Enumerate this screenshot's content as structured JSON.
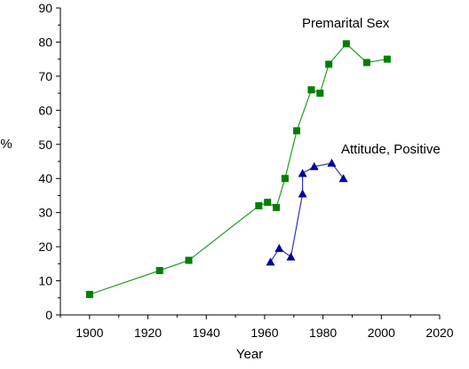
{
  "chart_data": {
    "type": "line",
    "title": "",
    "xlabel": "Year",
    "ylabel": "%",
    "xlim": [
      1890,
      2020
    ],
    "ylim": [
      0,
      90
    ],
    "xticks": [
      1900,
      1920,
      1940,
      1960,
      1980,
      2000,
      2020
    ],
    "yticks": [
      0,
      10,
      20,
      30,
      40,
      50,
      60,
      70,
      80,
      90
    ],
    "grid": false,
    "legend": "none",
    "series": [
      {
        "name": "Premarital Sex",
        "color": "#008000",
        "line_color": "#22a022",
        "marker": "square",
        "points": [
          {
            "x": 1900,
            "y": 6
          },
          {
            "x": 1924,
            "y": 13
          },
          {
            "x": 1934,
            "y": 16
          },
          {
            "x": 1958,
            "y": 32
          },
          {
            "x": 1961,
            "y": 33
          },
          {
            "x": 1964,
            "y": 31.5
          },
          {
            "x": 1967,
            "y": 40
          },
          {
            "x": 1971,
            "y": 54
          },
          {
            "x": 1976,
            "y": 66
          },
          {
            "x": 1979,
            "y": 65
          },
          {
            "x": 1982,
            "y": 73.5
          },
          {
            "x": 1988,
            "y": 79.5
          },
          {
            "x": 1995,
            "y": 74
          },
          {
            "x": 2002,
            "y": 75
          }
        ]
      },
      {
        "name": "Attitude, Positive",
        "color": "#0000a0",
        "line_color": "#3333c0",
        "marker": "triangle",
        "points": [
          {
            "x": 1962,
            "y": 15.5
          },
          {
            "x": 1965,
            "y": 19.5
          },
          {
            "x": 1969,
            "y": 17
          },
          {
            "x": 1973,
            "y": 35.5
          },
          {
            "x": 1973,
            "y": 41.5
          },
          {
            "x": 1977,
            "y": 43.5
          },
          {
            "x": 1983,
            "y": 44.5
          },
          {
            "x": 1987,
            "y": 40
          }
        ]
      }
    ]
  }
}
